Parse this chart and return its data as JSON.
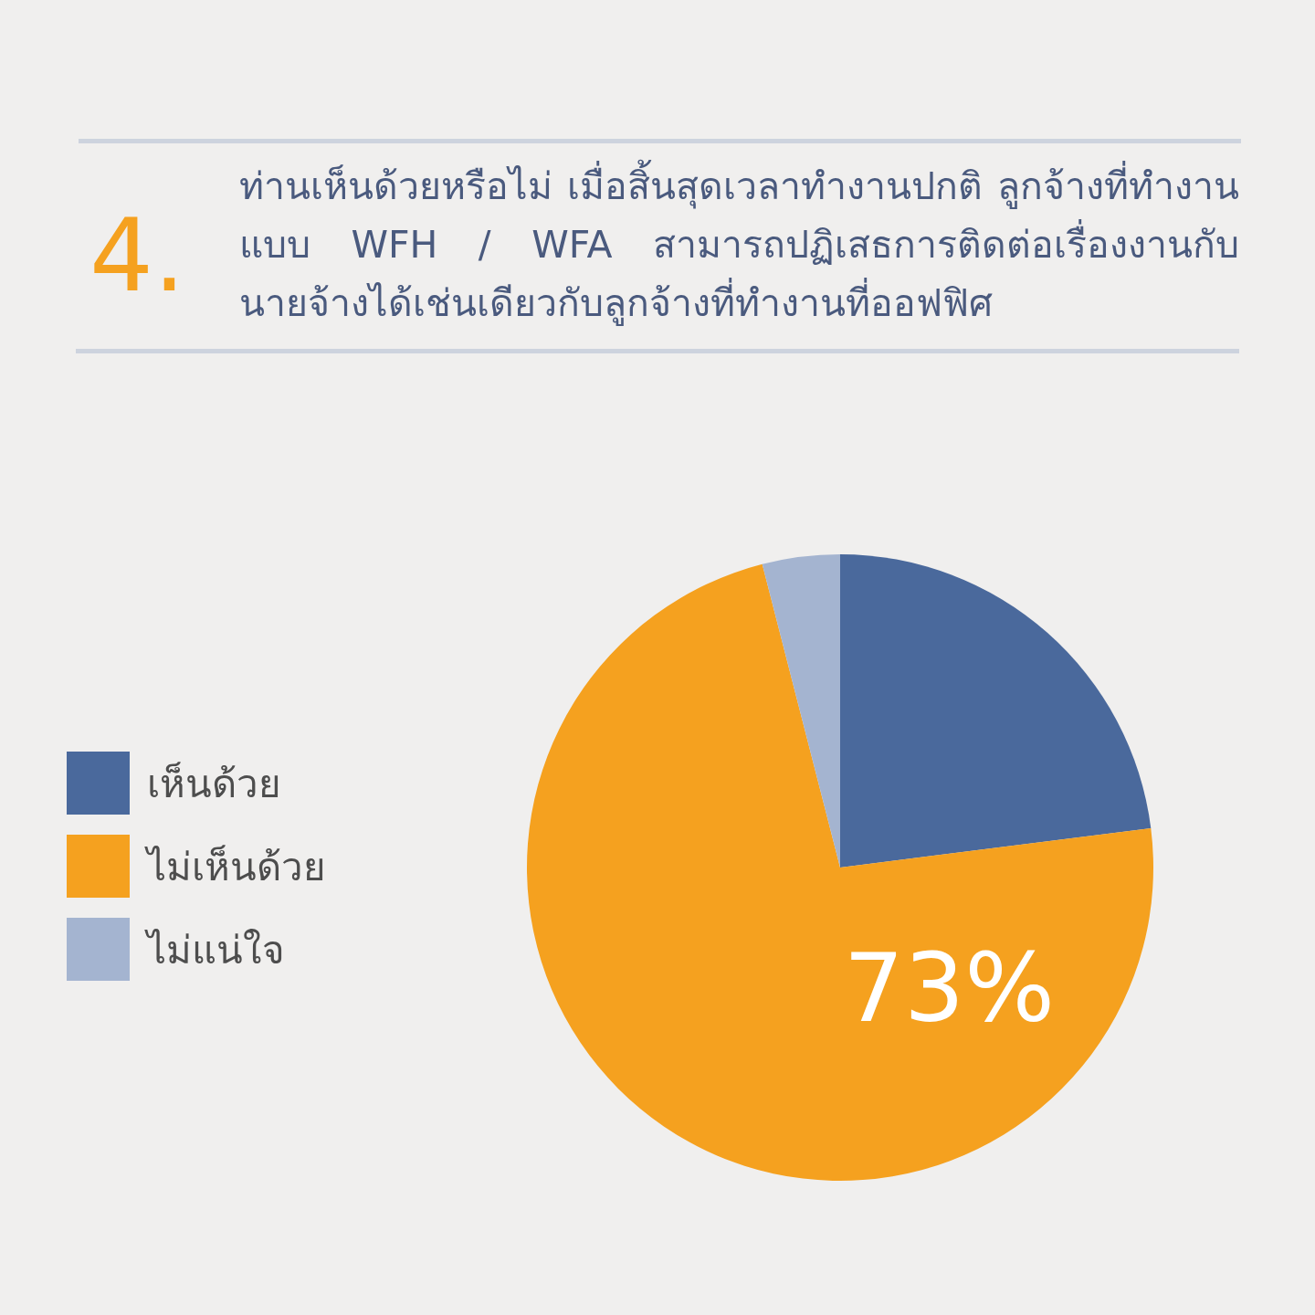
{
  "chart_data": {
    "type": "pie",
    "title": "ท่านเห็นด้วยหรือไม่ เมื่อสิ้นสุดเวลาทำงานปกติ ลูกจ้างที่ทำงานแบบ WFH / WFA สามารถปฏิเสธการติดต่อเรื่องงานกับนายจ้างได้เช่นเดียวกับลูกจ้างที่ทำงานที่ออฟฟิศ",
    "annotations": [
      "4."
    ],
    "categories": [
      "เห็นด้วย",
      "ไม่เห็นด้วย",
      "ไม่แน่ใจ"
    ],
    "values": [
      23,
      73,
      4
    ],
    "colors": [
      "#4a699c",
      "#f5a11f",
      "#a4b4d0"
    ],
    "value_labels": [
      null,
      "73%",
      null
    ],
    "legend": "left"
  }
}
